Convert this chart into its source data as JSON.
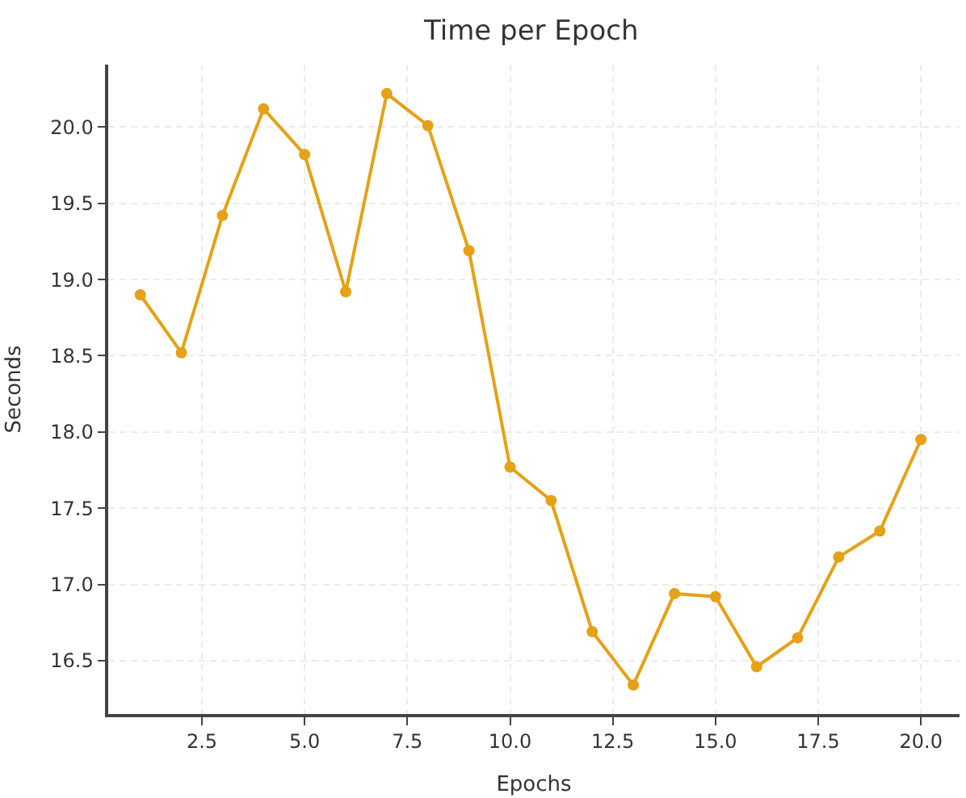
{
  "chart_data": {
    "type": "line",
    "title": "Time per Epoch",
    "xlabel": "Epochs",
    "ylabel": "Seconds",
    "x": [
      1,
      2,
      3,
      4,
      5,
      6,
      7,
      8,
      9,
      10,
      11,
      12,
      13,
      14,
      15,
      16,
      17,
      18,
      19,
      20
    ],
    "series": [
      {
        "color": "#e5a117",
        "values": [
          18.9,
          18.52,
          19.42,
          20.12,
          19.82,
          18.92,
          20.22,
          20.01,
          19.19,
          17.77,
          17.55,
          16.69,
          16.34,
          16.94,
          16.92,
          16.46,
          16.65,
          17.18,
          17.35,
          17.95
        ]
      }
    ],
    "xlim": [
      0.22,
      20.94
    ],
    "xticks": [
      {
        "value": 2.5,
        "label": "2.5"
      },
      {
        "value": 5,
        "label": "5.0"
      },
      {
        "value": 7.5,
        "label": "7.5"
      },
      {
        "value": 10,
        "label": "10.0"
      },
      {
        "value": 12.5,
        "label": "12.5"
      },
      {
        "value": 15,
        "label": "15.0"
      },
      {
        "value": 17.5,
        "label": "17.5"
      },
      {
        "value": 20,
        "label": "20.0"
      }
    ],
    "ylim": [
      16.15,
      20.41
    ],
    "yticks": [
      16.5,
      {
        "value": 17,
        "label": "17.0"
      },
      17.5,
      {
        "value": 18,
        "label": "18.0"
      },
      18.5,
      {
        "value": 19,
        "label": "19.0"
      },
      19.5,
      {
        "value": 20,
        "label": "20.0"
      }
    ],
    "grid": true,
    "marker": "circle",
    "line_style": "solid",
    "legend": false
  }
}
